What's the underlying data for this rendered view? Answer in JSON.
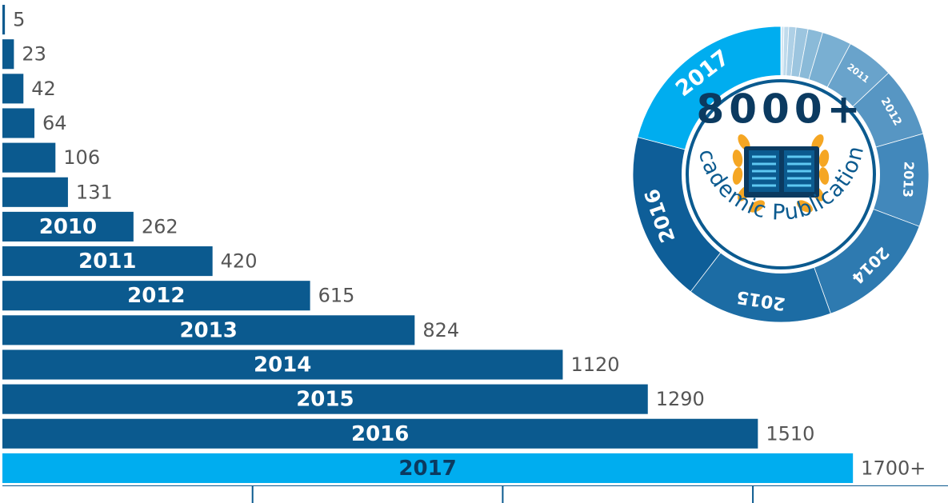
{
  "chart_data": {
    "type": "bar",
    "orientation": "horizontal",
    "categories": [
      null,
      null,
      null,
      null,
      null,
      null,
      "2010",
      "2011",
      "2012",
      "2013",
      "2014",
      "2015",
      "2016",
      "2017"
    ],
    "values": [
      5,
      23,
      42,
      64,
      106,
      131,
      262,
      420,
      615,
      824,
      1120,
      1290,
      1510,
      1700
    ],
    "value_labels": [
      "5",
      "23",
      "42",
      "64",
      "106",
      "131",
      "262",
      "420",
      "615",
      "824",
      "1120",
      "1290",
      "1510",
      "1700+"
    ],
    "colors": [
      "#0b5a8f",
      "#0b5a8f",
      "#0b5a8f",
      "#0b5a8f",
      "#0b5a8f",
      "#0b5a8f",
      "#0b5a8f",
      "#0b5a8f",
      "#0b5a8f",
      "#0b5a8f",
      "#0b5a8f",
      "#0b5a8f",
      "#0b5a8f",
      "#00adef"
    ],
    "xlim": [
      0,
      1890
    ],
    "xticks": [
      500,
      1000,
      1500
    ],
    "donut": {
      "type": "donut",
      "title": "8000+",
      "subtitle": "Academic Publications",
      "colors": [
        "#e3eff8",
        "#d2e5f2",
        "#c0dbec",
        "#aed0e6",
        "#9cc5df",
        "#8abad8",
        "#79afd2",
        "#69a3cb",
        "#5796c3",
        "#4288bb",
        "#2e7ab0",
        "#1c6ca4",
        "#0e5e98",
        "#00adef"
      ]
    }
  }
}
